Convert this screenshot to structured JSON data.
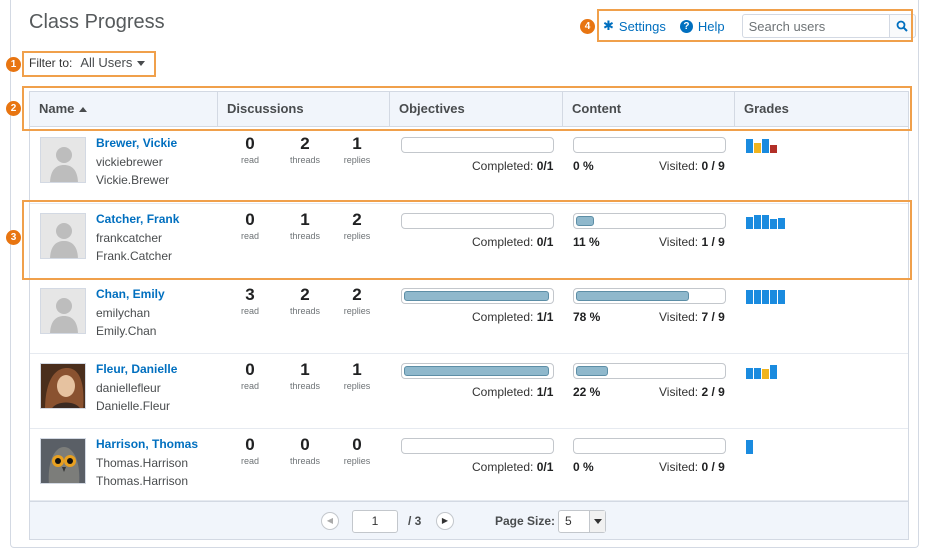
{
  "header": {
    "title": "Class Progress",
    "settings_label": "Settings",
    "help_label": "Help",
    "search_placeholder": "Search users"
  },
  "filter": {
    "label": "Filter to:",
    "value": "All Users"
  },
  "callouts": [
    "1",
    "2",
    "3",
    "4"
  ],
  "columns": {
    "name": "Name",
    "discussions": "Discussions",
    "objectives": "Objectives",
    "content": "Content",
    "grades": "Grades"
  },
  "stat_labels": {
    "read": "read",
    "threads": "threads",
    "replies": "replies"
  },
  "progress_labels": {
    "completed": "Completed:",
    "visited": "Visited:"
  },
  "users": [
    {
      "name": "Brewer, Vickie",
      "username": "vickiebrewer",
      "orgid": "Vickie.Brewer",
      "avatar": "default",
      "read": "0",
      "threads": "2",
      "replies": "1",
      "completed": "0/1",
      "objectives_fraction": 0,
      "content_pct": "0 %",
      "content_fraction": 0,
      "visited": "0 / 9",
      "grades": [
        {
          "level": 1.0,
          "color": "#1a8bdf"
        },
        {
          "level": 0.7,
          "color": "#f0b41e"
        },
        {
          "level": 1.0,
          "color": "#1a8bdf"
        },
        {
          "level": 0.55,
          "color": "#b22f27"
        }
      ]
    },
    {
      "name": "Catcher, Frank",
      "username": "frankcatcher",
      "orgid": "Frank.Catcher",
      "avatar": "default",
      "read": "0",
      "threads": "1",
      "replies": "2",
      "completed": "0/1",
      "objectives_fraction": 0,
      "content_pct": "11 %",
      "content_fraction": 0.11,
      "visited": "1 / 9",
      "grades": [
        {
          "level": 0.85,
          "color": "#1a8bdf"
        },
        {
          "level": 1.0,
          "color": "#1a8bdf"
        },
        {
          "level": 1.0,
          "color": "#1a8bdf"
        },
        {
          "level": 0.7,
          "color": "#1a8bdf"
        },
        {
          "level": 0.75,
          "color": "#1a8bdf"
        }
      ]
    },
    {
      "name": "Chan, Emily",
      "username": "emilychan",
      "orgid": "Emily.Chan",
      "avatar": "default",
      "read": "3",
      "threads": "2",
      "replies": "2",
      "completed": "1/1",
      "objectives_fraction": 1,
      "content_pct": "78 %",
      "content_fraction": 0.78,
      "visited": "7 / 9",
      "grades": [
        {
          "level": 1.0,
          "color": "#1a8bdf"
        },
        {
          "level": 1.0,
          "color": "#1a8bdf"
        },
        {
          "level": 1.0,
          "color": "#1a8bdf"
        },
        {
          "level": 1.0,
          "color": "#1a8bdf"
        },
        {
          "level": 1.0,
          "color": "#1a8bdf"
        }
      ]
    },
    {
      "name": "Fleur, Danielle",
      "username": "daniellefleur",
      "orgid": "Danielle.Fleur",
      "avatar": "photo-woman",
      "read": "0",
      "threads": "1",
      "replies": "1",
      "completed": "1/1",
      "objectives_fraction": 1,
      "content_pct": "22 %",
      "content_fraction": 0.22,
      "visited": "2 / 9",
      "grades": [
        {
          "level": 0.75,
          "color": "#1a8bdf"
        },
        {
          "level": 0.75,
          "color": "#1a8bdf"
        },
        {
          "level": 0.7,
          "color": "#f0b41e"
        },
        {
          "level": 1.0,
          "color": "#1a8bdf"
        }
      ]
    },
    {
      "name": "Harrison, Thomas",
      "username": "Thomas.Harrison",
      "orgid": "Thomas.Harrison",
      "avatar": "photo-owl",
      "read": "0",
      "threads": "0",
      "replies": "0",
      "completed": "0/1",
      "objectives_fraction": 0,
      "content_pct": "0 %",
      "content_fraction": 0,
      "visited": "0 / 9",
      "grades": [
        {
          "level": 1.0,
          "color": "#1a8bdf"
        }
      ]
    }
  ],
  "pager": {
    "page": "1",
    "total": "/ 3",
    "page_size_label": "Page Size:",
    "page_size": "5"
  }
}
